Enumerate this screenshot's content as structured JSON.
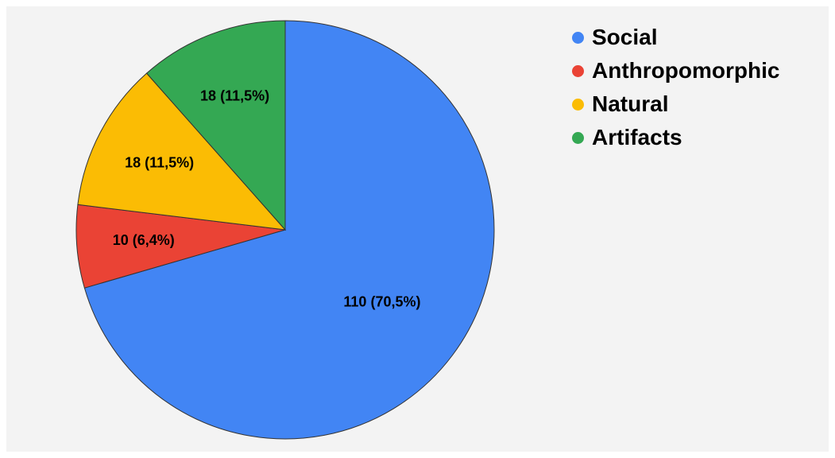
{
  "chart_data": {
    "type": "pie",
    "categories": [
      "Social",
      "Anthropomorphic",
      "Natural",
      "Artifacts"
    ],
    "values": [
      110,
      10,
      18,
      18
    ],
    "percentages": [
      "70,5%",
      "6,4%",
      "11,5%",
      "11,5%"
    ],
    "slice_labels": [
      "110 (70,5%)",
      "10 (6,4%)",
      "18 (11,5%)",
      "18 (11,5%)"
    ],
    "colors": [
      "#4285f4",
      "#ea4335",
      "#fbbc04",
      "#34a853"
    ],
    "legend_position": "right"
  }
}
